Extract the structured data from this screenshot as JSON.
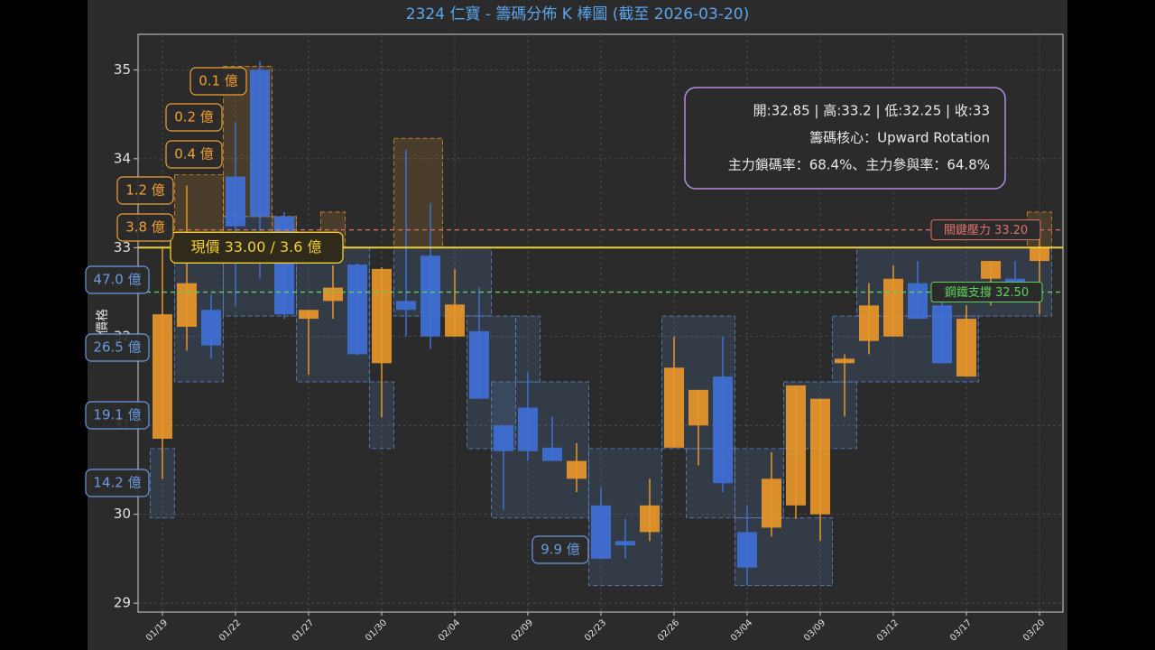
{
  "chart_data": {
    "type": "candlestick",
    "title": "2324 仁寶 - 籌碼分佈 K 棒圖 (截至 2026-03-20)",
    "ylabel": "價格",
    "categories": [
      "01/19",
      null,
      null,
      "01/22",
      null,
      null,
      "01/27",
      null,
      null,
      "01/30",
      null,
      null,
      "02/04",
      null,
      null,
      "02/09",
      null,
      null,
      "02/23",
      null,
      null,
      "02/26",
      null,
      null,
      "03/04",
      null,
      null,
      "03/09",
      null,
      null,
      "03/12",
      null,
      null,
      "03/17",
      null,
      null,
      "03/20"
    ],
    "open": [
      30.85,
      32.11,
      32.3,
      33.8,
      35.0,
      33.35,
      32.2,
      32.4,
      32.81,
      31.7,
      32.4,
      32.91,
      32.0,
      32.06,
      31.0,
      31.2,
      30.75,
      30.4,
      30.1,
      29.7,
      29.8,
      30.75,
      31.0,
      31.55,
      29.8,
      29.85,
      30.1,
      30.0,
      31.7,
      31.95,
      32.0,
      32.6,
      32.35,
      31.55,
      32.65,
      32.65,
      32.85
    ],
    "high": [
      32.99,
      33.7,
      32.48,
      34.41,
      35.1,
      33.4,
      32.3,
      32.8,
      32.82,
      32.78,
      34.1,
      33.5,
      32.76,
      32.55,
      31.0,
      31.6,
      31.1,
      30.8,
      30.3,
      29.95,
      30.4,
      32.0,
      31.4,
      32.0,
      30.1,
      30.7,
      31.45,
      31.3,
      31.8,
      32.6,
      32.8,
      32.85,
      32.55,
      32.35,
      32.85,
      32.85,
      33.2
    ],
    "low": [
      30.4,
      31.84,
      31.75,
      32.35,
      32.65,
      32.2,
      31.57,
      32.2,
      31.79,
      31.09,
      32.0,
      31.86,
      32.0,
      31.3,
      30.05,
      30.6,
      30.6,
      30.25,
      29.5,
      29.5,
      29.7,
      30.75,
      30.55,
      30.25,
      29.2,
      29.75,
      29.95,
      29.7,
      31.1,
      31.8,
      32.0,
      32.2,
      31.7,
      31.55,
      32.35,
      32.55,
      32.25
    ],
    "close": [
      32.25,
      32.6,
      31.9,
      33.24,
      33.35,
      32.25,
      32.3,
      32.55,
      31.8,
      32.76,
      32.3,
      32.0,
      32.36,
      31.3,
      30.71,
      30.71,
      30.6,
      30.6,
      29.5,
      29.65,
      30.1,
      31.65,
      31.4,
      30.35,
      29.4,
      30.4,
      31.45,
      31.3,
      31.75,
      32.35,
      32.65,
      32.2,
      31.7,
      32.2,
      32.85,
      32.6,
      33.0
    ],
    "up_color": "#e8962a",
    "down_color": "#3f6fd6",
    "ylim": [
      28.9,
      35.4
    ],
    "yticks": [
      29,
      30,
      31,
      32,
      33,
      34,
      35
    ],
    "grid": true,
    "zones": [
      {
        "from": 0,
        "to": 0,
        "low": 29.96,
        "high": 30.74,
        "color": "#5b86c4"
      },
      {
        "from": 1,
        "to": 2,
        "low": 31.49,
        "high": 33.0,
        "color": "#5b86c4"
      },
      {
        "from": 3,
        "to": 5,
        "low": 32.23,
        "high": 33.35,
        "color": "#5b86c4"
      },
      {
        "from": 6,
        "to": 8,
        "low": 31.49,
        "high": 33.0,
        "color": "#5b86c4"
      },
      {
        "from": 9,
        "to": 9,
        "low": 30.74,
        "high": 31.49,
        "color": "#5b86c4"
      },
      {
        "from": 10,
        "to": 13,
        "low": 32.23,
        "high": 33.0,
        "color": "#5b86c4"
      },
      {
        "from": 13,
        "to": 14,
        "low": 30.74,
        "high": 32.23,
        "color": "#5b86c4"
      },
      {
        "from": 15,
        "to": 15,
        "low": 31.49,
        "high": 32.23,
        "color": "#5b86c4"
      },
      {
        "from": 14,
        "to": 17,
        "low": 29.96,
        "high": 31.49,
        "color": "#5b86c4"
      },
      {
        "from": 18,
        "to": 20,
        "low": 29.2,
        "high": 30.74,
        "color": "#5b86c4"
      },
      {
        "from": 21,
        "to": 23,
        "low": 30.74,
        "high": 32.23,
        "color": "#5b86c4"
      },
      {
        "from": 22,
        "to": 23,
        "low": 29.96,
        "high": 30.74,
        "color": "#5b86c4"
      },
      {
        "from": 24,
        "to": 27,
        "low": 29.2,
        "high": 29.96,
        "color": "#5b86c4"
      },
      {
        "from": 24,
        "to": 25,
        "low": 29.96,
        "high": 30.74,
        "color": "#5b86c4"
      },
      {
        "from": 26,
        "to": 28,
        "low": 30.74,
        "high": 31.49,
        "color": "#5b86c4"
      },
      {
        "from": 28,
        "to": 33,
        "low": 31.49,
        "high": 32.23,
        "color": "#5b86c4"
      },
      {
        "from": 29,
        "to": 36,
        "low": 32.23,
        "high": 33.0,
        "color": "#5b86c4"
      },
      {
        "from": 1,
        "to": 2,
        "low": 33.0,
        "high": 33.82,
        "color": "#d9902e"
      },
      {
        "from": 3,
        "to": 4,
        "low": 33.35,
        "high": 35.04,
        "color": "#d9902e"
      },
      {
        "from": 5,
        "to": 5,
        "low": 33.0,
        "high": 33.35,
        "color": "#d9902e"
      },
      {
        "from": 7,
        "to": 7,
        "low": 33.0,
        "high": 33.4,
        "color": "#d9902e"
      },
      {
        "from": 10,
        "to": 11,
        "low": 33.0,
        "high": 34.23,
        "color": "#d9902e"
      },
      {
        "from": 36,
        "to": 36,
        "low": 33.0,
        "high": 33.4,
        "color": "#d9902e"
      }
    ],
    "volume_labels": [
      {
        "text": "0.1 億",
        "color": "#f0a030"
      },
      {
        "text": "0.2 億",
        "color": "#f0a030"
      },
      {
        "text": "0.4 億",
        "color": "#f0a030"
      },
      {
        "text": "1.2 億",
        "color": "#f0a030"
      },
      {
        "text": "3.8 億",
        "color": "#f0a030"
      },
      {
        "text": "47.0 億",
        "color": "#6a9ae0"
      },
      {
        "text": "26.5 億",
        "color": "#6a9ae0"
      },
      {
        "text": "19.1 億",
        "color": "#6a9ae0"
      },
      {
        "text": "14.2 億",
        "color": "#6a9ae0"
      },
      {
        "text": "9.9 億",
        "color": "#6a9ae0"
      }
    ],
    "current": {
      "label": "現價 33.00 / 3.6 億",
      "value": 33.0,
      "color": "#f2d031"
    },
    "resistance": {
      "label": "關鍵壓力 33.20",
      "value": 33.2,
      "color": "#e0706a"
    },
    "support": {
      "label": "鋼鐵支撐 32.50",
      "value": 32.5,
      "color": "#5ed35e"
    },
    "info": [
      "開:32.85 | 高:33.2 | 低:32.25 | 收:33",
      "籌碼核心：Upward Rotation",
      "主力鎖碼率：68.4%、主力參與率：64.8%"
    ]
  }
}
